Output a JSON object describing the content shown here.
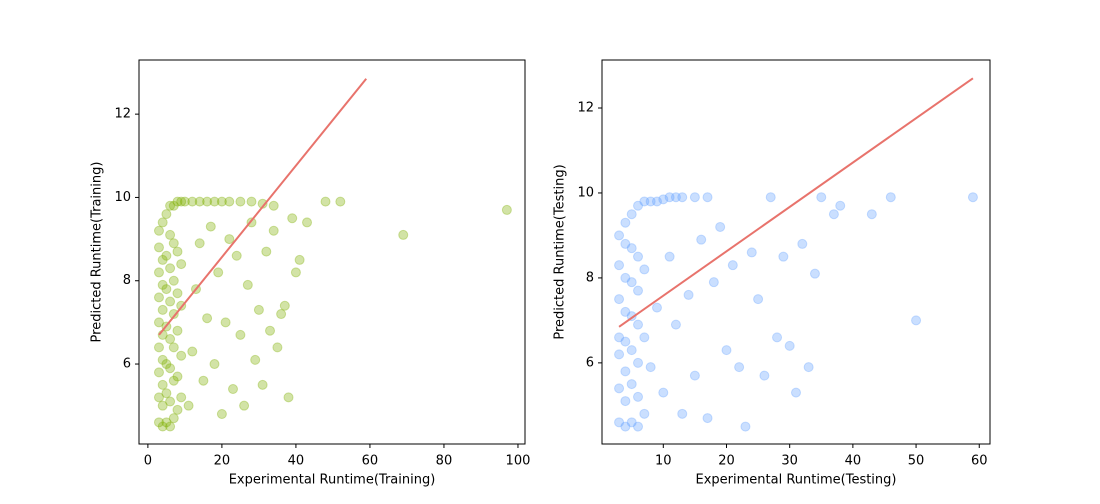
{
  "chart_data": [
    {
      "type": "scatter",
      "x_label": "Experimental Runtime(Training)",
      "y_label": "Predicted Runtime(Training)",
      "color": "#7fb000",
      "alpha": 0.35,
      "x": [
        3,
        3,
        3,
        3,
        3,
        3,
        3,
        3,
        3,
        4,
        4,
        4,
        4,
        4,
        4,
        4,
        4,
        4,
        5,
        5,
        5,
        5,
        5,
        5,
        5,
        6,
        6,
        6,
        6,
        6,
        6,
        6,
        6,
        7,
        7,
        7,
        7,
        7,
        7,
        7,
        8,
        8,
        8,
        8,
        8,
        8,
        9,
        9,
        9,
        9,
        9,
        10,
        12,
        14,
        16,
        18,
        20,
        22,
        25,
        28,
        31,
        34,
        11,
        12,
        13,
        14,
        15,
        16,
        17,
        18,
        19,
        20,
        21,
        22,
        23,
        24,
        25,
        26,
        27,
        28,
        29,
        30,
        31,
        32,
        33,
        34,
        35,
        36,
        37,
        38,
        39,
        40,
        41,
        43,
        48,
        52,
        69,
        97
      ],
      "y": [
        4.6,
        5.2,
        5.8,
        6.4,
        7.0,
        7.6,
        8.2,
        8.8,
        9.2,
        4.5,
        5.0,
        5.5,
        6.1,
        6.7,
        7.3,
        7.9,
        8.5,
        9.4,
        4.6,
        5.3,
        6.0,
        6.9,
        7.8,
        8.6,
        9.6,
        4.5,
        5.1,
        5.9,
        6.6,
        7.5,
        8.3,
        9.1,
        9.8,
        4.7,
        5.6,
        6.4,
        7.2,
        8.0,
        8.9,
        9.8,
        4.9,
        5.7,
        6.8,
        7.7,
        8.7,
        9.9,
        5.2,
        6.2,
        7.4,
        8.4,
        9.9,
        9.9,
        9.9,
        9.9,
        9.9,
        9.9,
        9.9,
        9.9,
        9.9,
        9.9,
        9.85,
        9.8,
        5.0,
        6.3,
        7.8,
        8.9,
        5.6,
        7.1,
        9.3,
        6.0,
        8.2,
        4.8,
        7.0,
        9.0,
        5.4,
        8.6,
        6.7,
        5.0,
        7.9,
        9.4,
        6.1,
        7.3,
        5.5,
        8.7,
        6.8,
        9.2,
        6.4,
        7.2,
        7.4,
        5.2,
        9.5,
        8.2,
        8.5,
        9.4,
        9.9,
        9.9,
        9.1,
        9.7
      ],
      "trend_line": {
        "x": [
          3,
          59
        ],
        "y": [
          6.7,
          12.85
        ],
        "color": "#e8736c"
      },
      "xlim": [
        -2.4,
        101.9
      ],
      "ylim": [
        4.08,
        13.3
      ],
      "xticks": [
        0,
        20,
        40,
        60,
        80,
        100
      ],
      "yticks": [
        6,
        8,
        10,
        12
      ]
    },
    {
      "type": "scatter",
      "x_label": "Experimental Runtime(Testing)",
      "y_label": "Predicted Runtime(Testing)",
      "color": "#66a3ff",
      "alpha": 0.35,
      "x": [
        3,
        3,
        3,
        3,
        3,
        3,
        3,
        4,
        4,
        4,
        4,
        4,
        4,
        4,
        4,
        5,
        5,
        5,
        5,
        5,
        5,
        5,
        6,
        6,
        6,
        6,
        6,
        6,
        6,
        7,
        7,
        7,
        7,
        8,
        9,
        10,
        11,
        12,
        13,
        15,
        17,
        8,
        9,
        10,
        11,
        12,
        13,
        14,
        15,
        16,
        17,
        18,
        19,
        20,
        21,
        22,
        23,
        24,
        25,
        26,
        27,
        28,
        29,
        30,
        31,
        32,
        33,
        34,
        35,
        37,
        38,
        43,
        46,
        50,
        59
      ],
      "y": [
        4.6,
        5.4,
        6.2,
        6.6,
        7.5,
        8.3,
        9.0,
        4.5,
        5.1,
        5.8,
        6.5,
        7.2,
        8.0,
        8.8,
        9.3,
        4.6,
        5.5,
        6.3,
        7.1,
        7.9,
        8.7,
        9.5,
        4.5,
        5.2,
        6.0,
        6.9,
        7.7,
        8.5,
        9.7,
        4.8,
        6.6,
        8.2,
        9.8,
        9.8,
        9.8,
        9.85,
        9.9,
        9.9,
        9.9,
        9.9,
        9.9,
        5.9,
        7.3,
        5.3,
        8.5,
        6.9,
        4.8,
        7.6,
        5.7,
        8.9,
        4.7,
        7.9,
        9.2,
        6.3,
        8.3,
        5.9,
        4.5,
        8.6,
        7.5,
        5.7,
        9.9,
        6.6,
        8.5,
        6.4,
        5.3,
        8.8,
        5.9,
        8.1,
        9.9,
        9.5,
        9.7,
        9.5,
        9.9,
        7.0,
        9.9
      ],
      "trend_line": {
        "x": [
          3,
          59
        ],
        "y": [
          6.85,
          12.7
        ],
        "color": "#e8736c"
      },
      "xlim": [
        0.3,
        61.7
      ],
      "ylim": [
        4.09,
        13.13
      ],
      "xticks": [
        10,
        20,
        30,
        40,
        50,
        60
      ],
      "yticks": [
        6,
        8,
        10,
        12
      ]
    }
  ]
}
